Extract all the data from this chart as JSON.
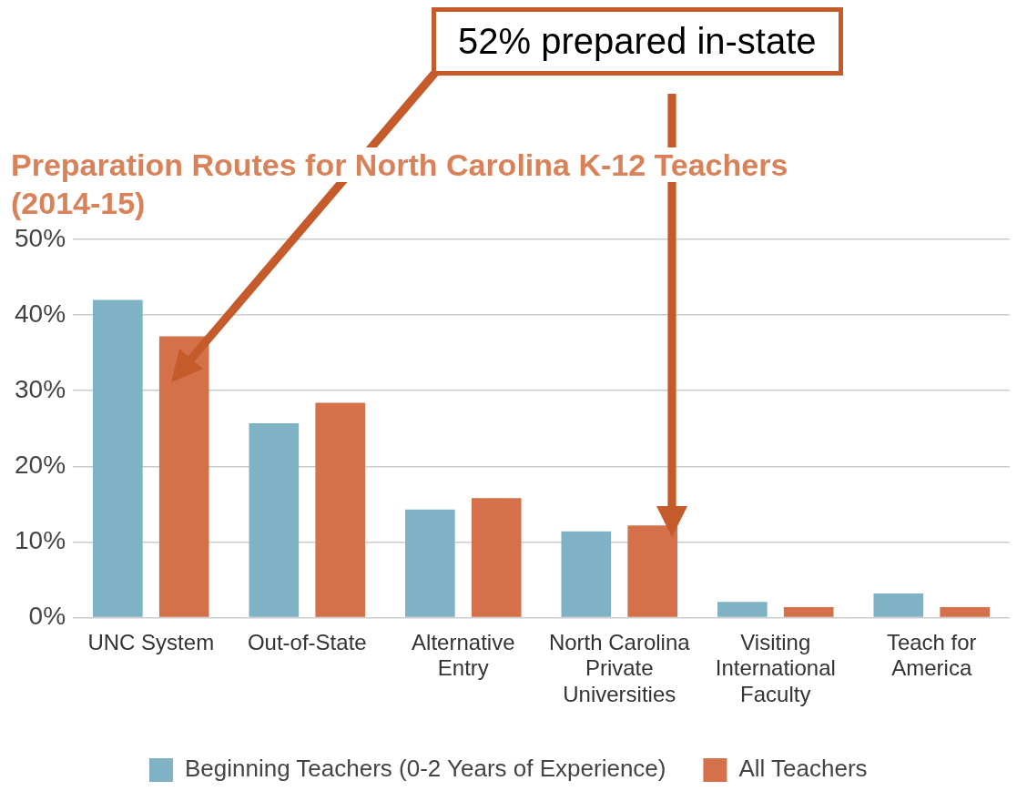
{
  "chart_data": {
    "type": "bar",
    "title": "Preparation Routes for North Carolina K-12 Teachers (2014-15)",
    "categories": [
      "UNC System",
      "Out-of-State",
      "Alternative Entry",
      "North Carolina Private Universities",
      "Visiting International Faculty",
      "Teach for America"
    ],
    "series": [
      {
        "name": "Beginning Teachers (0-2 Years of Experience)",
        "color": "#7fb2c5",
        "values": [
          42,
          25.7,
          14.3,
          11.4,
          2.1,
          3.2
        ]
      },
      {
        "name": "All Teachers",
        "color": "#d4714a",
        "values": [
          37.2,
          28.4,
          15.8,
          12.2,
          1.4,
          1.4
        ]
      }
    ],
    "ylim": [
      0,
      50
    ],
    "yticks": [
      {
        "value": 0,
        "label": "0%"
      },
      {
        "value": 10,
        "label": "10%"
      },
      {
        "value": 20,
        "label": "20%"
      },
      {
        "value": 30,
        "label": "30%"
      },
      {
        "value": 40,
        "label": "40%"
      },
      {
        "value": 50,
        "label": "50%"
      }
    ],
    "grid": "y",
    "legend": "bottom",
    "annotations": [
      "52% prepared in-state"
    ]
  }
}
